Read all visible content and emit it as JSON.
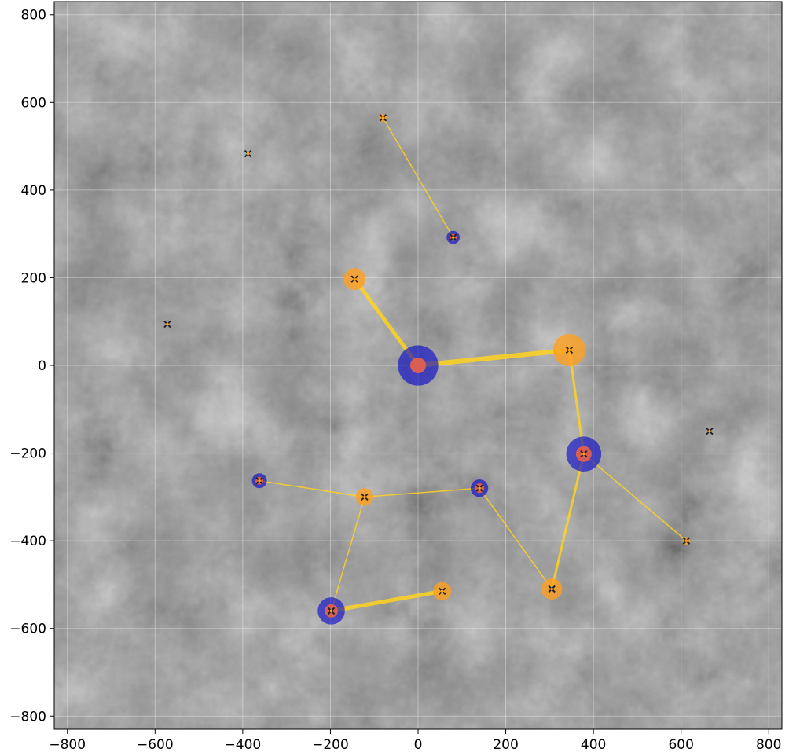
{
  "chart_data": {
    "type": "scatter",
    "title": "",
    "xlabel": "",
    "ylabel": "",
    "xlim": [
      -830,
      830
    ],
    "ylim": [
      -830,
      830
    ],
    "grid": true,
    "xticks": [
      -800,
      -600,
      -400,
      -200,
      0,
      200,
      400,
      600,
      800
    ],
    "yticks": [
      800,
      600,
      400,
      200,
      0,
      -200,
      -400,
      -600,
      -800
    ],
    "xtick_labels": [
      "−800",
      "−600",
      "−400",
      "−200",
      "0",
      "200",
      "400",
      "600",
      "800"
    ],
    "ytick_labels": [
      "800",
      "600",
      "400",
      "200",
      "0",
      "−200",
      "−400",
      "−600",
      "−800"
    ],
    "background": "grayscale terrain map",
    "colors": {
      "blue_halo": "#0000cc",
      "orange_node": "#ff9f1c",
      "red_core": "#e8604a",
      "edge": "#ffd21f",
      "marker": "#222222"
    },
    "nodes": [
      {
        "x": 0,
        "y": 0,
        "outer": 46,
        "inner": 18,
        "halo": "blue"
      },
      {
        "x": -145,
        "y": 197,
        "outer": 25,
        "halo": "orange"
      },
      {
        "x": 345,
        "y": 35,
        "outer": 37,
        "halo": "orange"
      },
      {
        "x": 378,
        "y": -202,
        "outer": 40,
        "inner": 18,
        "halo": "blue"
      },
      {
        "x": 80,
        "y": 292,
        "outer": 15,
        "inner": 8,
        "halo": "blue"
      },
      {
        "x": -80,
        "y": 565,
        "outer": 9,
        "halo": "orange"
      },
      {
        "x": -362,
        "y": -263,
        "outer": 17,
        "inner": 9,
        "halo": "blue"
      },
      {
        "x": -122,
        "y": -300,
        "outer": 20,
        "halo": "orange"
      },
      {
        "x": 140,
        "y": -280,
        "outer": 20,
        "inner": 11,
        "halo": "blue"
      },
      {
        "x": 612,
        "y": -400,
        "outer": 9,
        "halo": "orange"
      },
      {
        "x": -198,
        "y": -560,
        "outer": 31,
        "inner": 15,
        "halo": "blue"
      },
      {
        "x": 55,
        "y": -515,
        "outer": 21,
        "halo": "orange"
      },
      {
        "x": 305,
        "y": -510,
        "outer": 24,
        "halo": "orange"
      }
    ],
    "edges": [
      {
        "from": [
          0,
          0
        ],
        "to": [
          -145,
          197
        ],
        "width": 5
      },
      {
        "from": [
          0,
          0
        ],
        "to": [
          345,
          35
        ],
        "width": 6
      },
      {
        "from": [
          345,
          35
        ],
        "to": [
          378,
          -202
        ],
        "width": 3
      },
      {
        "from": [
          378,
          -202
        ],
        "to": [
          305,
          -510
        ],
        "width": 3
      },
      {
        "from": [
          378,
          -202
        ],
        "to": [
          612,
          -400
        ],
        "width": 1.5
      },
      {
        "from": [
          80,
          292
        ],
        "to": [
          -80,
          565
        ],
        "width": 1.5
      },
      {
        "from": [
          -362,
          -263
        ],
        "to": [
          -122,
          -300
        ],
        "width": 1.5
      },
      {
        "from": [
          -122,
          -300
        ],
        "to": [
          140,
          -280
        ],
        "width": 1.5
      },
      {
        "from": [
          -122,
          -300
        ],
        "to": [
          -198,
          -560
        ],
        "width": 1.5
      },
      {
        "from": [
          140,
          -280
        ],
        "to": [
          305,
          -510
        ],
        "width": 1.5
      },
      {
        "from": [
          -198,
          -560
        ],
        "to": [
          55,
          -515
        ],
        "width": 5
      }
    ],
    "markers": [
      {
        "x": -80,
        "y": 565
      },
      {
        "x": 80,
        "y": 292
      },
      {
        "x": -145,
        "y": 197
      },
      {
        "x": 345,
        "y": 35
      },
      {
        "x": 378,
        "y": -202
      },
      {
        "x": -362,
        "y": -263
      },
      {
        "x": -122,
        "y": -300
      },
      {
        "x": 140,
        "y": -280
      },
      {
        "x": 612,
        "y": -400
      },
      {
        "x": 55,
        "y": -515
      },
      {
        "x": 305,
        "y": -510
      },
      {
        "x": -198,
        "y": -560
      },
      {
        "x": -388,
        "y": 483
      },
      {
        "x": -572,
        "y": 94
      },
      {
        "x": 665,
        "y": -150
      }
    ]
  }
}
